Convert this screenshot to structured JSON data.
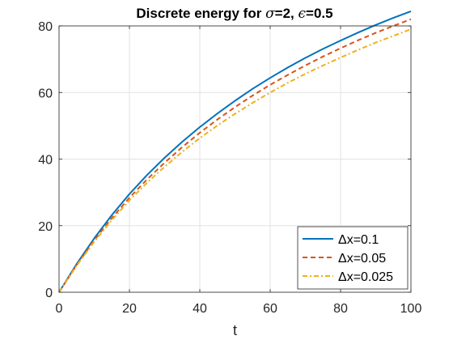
{
  "chart_data": {
    "type": "line",
    "title_parts": [
      "Discrete energy for ",
      "σ",
      "=2, ",
      "ϵ",
      "=0.5"
    ],
    "xlabel": "t",
    "ylabel": "",
    "xlim": [
      0,
      100
    ],
    "ylim": [
      0,
      80
    ],
    "xticks": [
      0,
      20,
      40,
      60,
      80,
      100
    ],
    "yticks": [
      0,
      20,
      40,
      60,
      80
    ],
    "grid": true,
    "legend_position": "bottom-right",
    "x": [
      0,
      5,
      10,
      15,
      20,
      25,
      30,
      35,
      40,
      45,
      50,
      55,
      60,
      65,
      70,
      75,
      80,
      85,
      90,
      95,
      100
    ],
    "series": [
      {
        "name": "Δx=0.1",
        "color": "#0072BD",
        "style": "solid",
        "values": [
          0,
          8.5,
          16.2,
          23.2,
          29.5,
          35.2,
          40.4,
          45.2,
          49.6,
          53.7,
          57.5,
          61.1,
          64.4,
          67.5,
          70.4,
          73.1,
          75.6,
          78.0,
          80.3,
          82.4,
          84.4
        ]
      },
      {
        "name": "Δx=0.05",
        "color": "#D95319",
        "style": "dashed",
        "values": [
          0,
          8.2,
          15.6,
          22.3,
          28.4,
          33.9,
          38.9,
          43.6,
          47.9,
          51.9,
          55.6,
          59.1,
          62.3,
          65.3,
          68.1,
          70.8,
          73.3,
          75.7,
          77.9,
          80.0,
          82.0
        ]
      },
      {
        "name": "Δx=0.025",
        "color": "#EDB120",
        "style": "dashdot",
        "values": [
          0,
          8.0,
          15.2,
          21.7,
          27.6,
          32.9,
          37.7,
          42.2,
          46.3,
          50.1,
          53.6,
          56.9,
          60.0,
          62.9,
          65.6,
          68.1,
          70.5,
          72.8,
          75.0,
          77.0,
          79.0
        ]
      }
    ]
  }
}
